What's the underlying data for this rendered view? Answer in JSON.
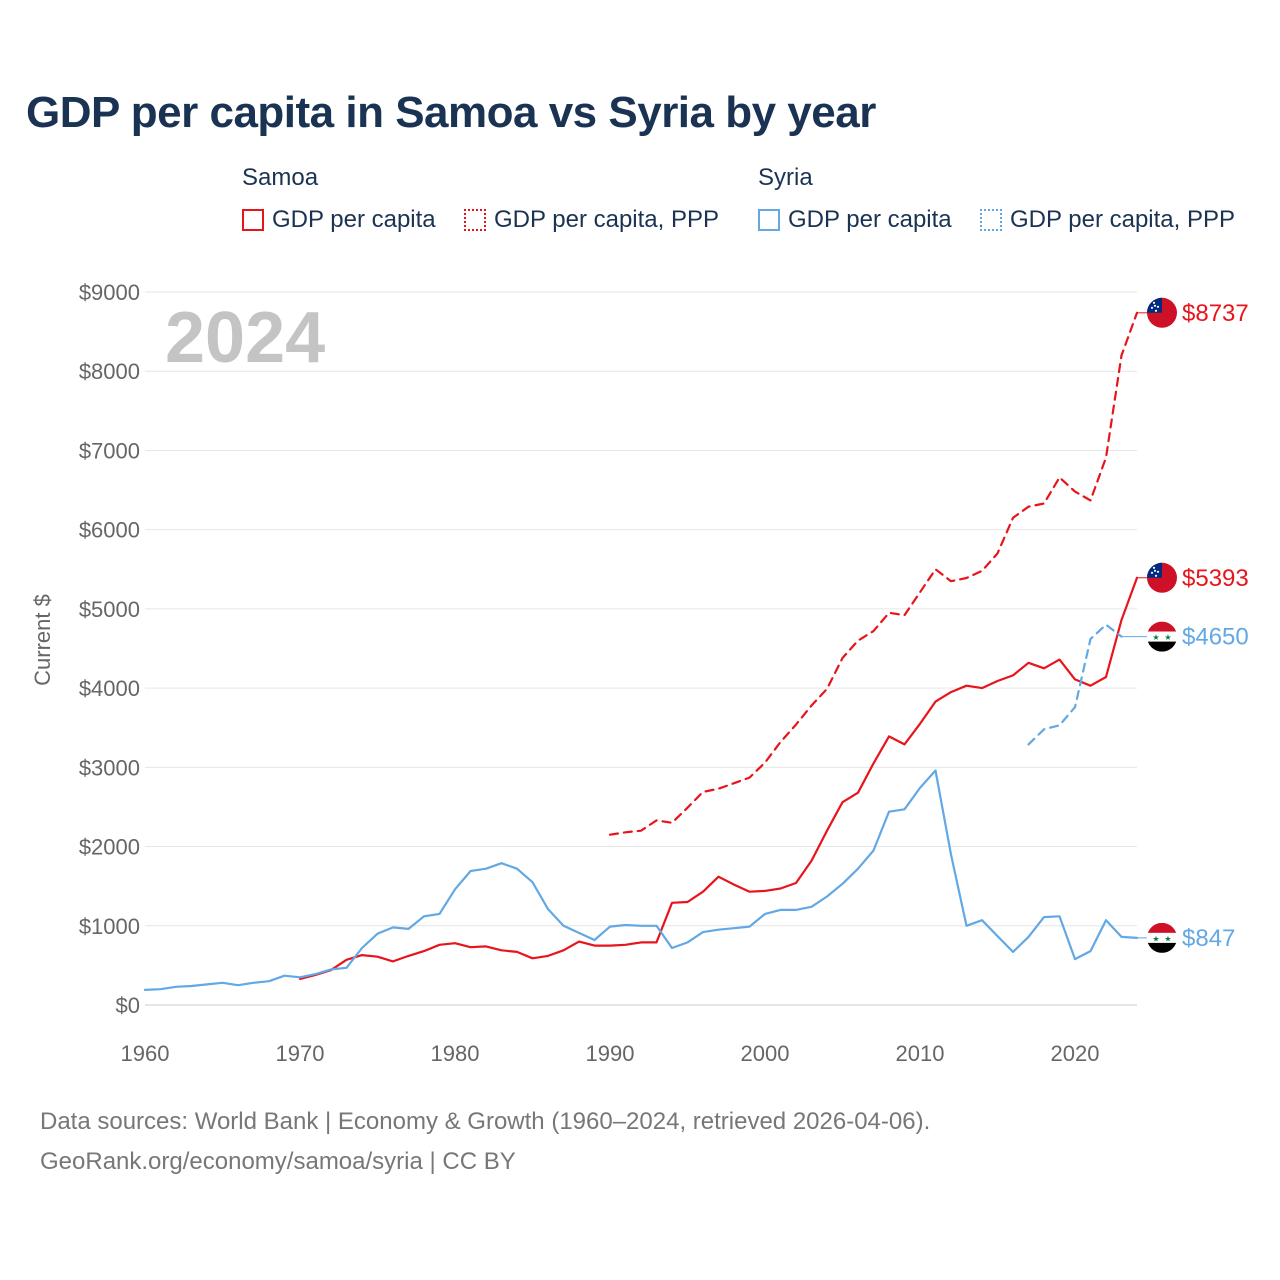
{
  "title": "GDP per capita in Samoa vs Syria by year",
  "legend": {
    "groups": [
      {
        "name": "Samoa",
        "items": [
          {
            "label": "GDP per capita",
            "style": "solid"
          },
          {
            "label": "GDP per capita, PPP",
            "style": "dotted"
          }
        ]
      },
      {
        "name": "Syria",
        "items": [
          {
            "label": "GDP per capita",
            "style": "solid"
          },
          {
            "label": "GDP per capita, PPP",
            "style": "dotted"
          }
        ]
      }
    ]
  },
  "year_watermark": "2024",
  "footer": {
    "line1": "Data sources: World Bank | Economy & Growth (1960–2024, retrieved 2026-04-06).",
    "line2": "GeoRank.org/economy/samoa/syria | CC BY"
  },
  "colors": {
    "samoa": "#e8141b",
    "syria": "#62a8e5",
    "title": "#1b3353"
  },
  "chart_data": {
    "type": "line",
    "title": "GDP per capita in Samoa vs Syria by year",
    "xlabel": "",
    "ylabel": "Current $",
    "xlim": [
      1960,
      2024
    ],
    "ylim": [
      0,
      9000
    ],
    "x_ticks": [
      1960,
      1970,
      1980,
      1990,
      2000,
      2010,
      2020
    ],
    "x_tick_labels": [
      "1960",
      "1970",
      "1980",
      "1990",
      "2000",
      "2010",
      "2020"
    ],
    "y_ticks": [
      0,
      1000,
      2000,
      3000,
      4000,
      5000,
      6000,
      7000,
      8000,
      9000
    ],
    "y_tick_labels": [
      "$0",
      "$1000",
      "$2000",
      "$3000",
      "$4000",
      "$5000",
      "$6000",
      "$7000",
      "$8000",
      "$9000"
    ],
    "grid": true,
    "series": [
      {
        "name": "Samoa GDP per capita",
        "country": "Samoa",
        "style": "solid",
        "end_label": "$5393",
        "x": [
          1970,
          1971,
          1972,
          1973,
          1974,
          1975,
          1976,
          1977,
          1978,
          1979,
          1980,
          1981,
          1982,
          1983,
          1984,
          1985,
          1986,
          1987,
          1988,
          1989,
          1990,
          1991,
          1992,
          1993,
          1994,
          1995,
          1996,
          1997,
          1998,
          1999,
          2000,
          2001,
          2002,
          2003,
          2004,
          2005,
          2006,
          2007,
          2008,
          2009,
          2010,
          2011,
          2012,
          2013,
          2014,
          2015,
          2016,
          2017,
          2018,
          2019,
          2020,
          2021,
          2022,
          2023,
          2024
        ],
        "values": [
          330,
          380,
          440,
          570,
          630,
          610,
          550,
          620,
          680,
          760,
          780,
          730,
          740,
          690,
          670,
          590,
          620,
          690,
          800,
          750,
          750,
          760,
          790,
          790,
          1290,
          1300,
          1430,
          1620,
          1520,
          1430,
          1440,
          1470,
          1540,
          1820,
          2200,
          2560,
          2680,
          3050,
          3390,
          3290,
          3550,
          3830,
          3950,
          4030,
          4000,
          4090,
          4160,
          4320,
          4250,
          4360,
          4110,
          4030,
          4140,
          4860,
          5393
        ]
      },
      {
        "name": "Samoa GDP per capita, PPP",
        "country": "Samoa",
        "style": "dashed",
        "end_label": "$8737",
        "x": [
          1990,
          1991,
          1992,
          1993,
          1994,
          1995,
          1996,
          1997,
          1998,
          1999,
          2000,
          2001,
          2002,
          2003,
          2004,
          2005,
          2006,
          2007,
          2008,
          2009,
          2010,
          2011,
          2012,
          2013,
          2014,
          2015,
          2016,
          2017,
          2018,
          2019,
          2020,
          2021,
          2022,
          2023,
          2024
        ],
        "values": [
          2150,
          2180,
          2200,
          2330,
          2300,
          2490,
          2690,
          2730,
          2800,
          2870,
          3060,
          3320,
          3540,
          3780,
          3990,
          4380,
          4600,
          4720,
          4950,
          4920,
          5210,
          5500,
          5350,
          5390,
          5480,
          5700,
          6150,
          6290,
          6330,
          6660,
          6480,
          6370,
          6910,
          8200,
          8737
        ]
      },
      {
        "name": "Syria GDP per capita",
        "country": "Syria",
        "style": "solid",
        "end_label": "$847",
        "x": [
          1960,
          1961,
          1962,
          1963,
          1964,
          1965,
          1966,
          1967,
          1968,
          1969,
          1970,
          1971,
          1972,
          1973,
          1974,
          1975,
          1976,
          1977,
          1978,
          1979,
          1980,
          1981,
          1982,
          1983,
          1984,
          1985,
          1986,
          1987,
          1988,
          1989,
          1990,
          1991,
          1992,
          1993,
          1994,
          1995,
          1996,
          1997,
          1998,
          1999,
          2000,
          2001,
          2002,
          2003,
          2004,
          2005,
          2006,
          2007,
          2008,
          2009,
          2010,
          2011,
          2012,
          2013,
          2014,
          2015,
          2016,
          2017,
          2018,
          2019,
          2020,
          2021,
          2022,
          2023,
          2024
        ],
        "values": [
          190,
          200,
          230,
          240,
          260,
          280,
          250,
          280,
          300,
          370,
          350,
          390,
          450,
          470,
          720,
          900,
          980,
          960,
          1120,
          1150,
          1460,
          1690,
          1720,
          1790,
          1720,
          1550,
          1210,
          1000,
          910,
          820,
          990,
          1010,
          1000,
          1000,
          720,
          790,
          920,
          950,
          970,
          990,
          1150,
          1200,
          1200,
          1240,
          1370,
          1530,
          1720,
          1950,
          2440,
          2470,
          2740,
          2960,
          1900,
          1000,
          1070,
          870,
          670,
          860,
          1110,
          1120,
          580,
          680,
          1070,
          860,
          847
        ]
      },
      {
        "name": "Syria GDP per capita, PPP",
        "country": "Syria",
        "style": "dashed",
        "end_label": "$4650",
        "x": [
          2017,
          2018,
          2019,
          2020,
          2021,
          2022,
          2023
        ],
        "values": [
          3290,
          3480,
          3530,
          3760,
          4620,
          4800,
          4650
        ]
      }
    ]
  }
}
